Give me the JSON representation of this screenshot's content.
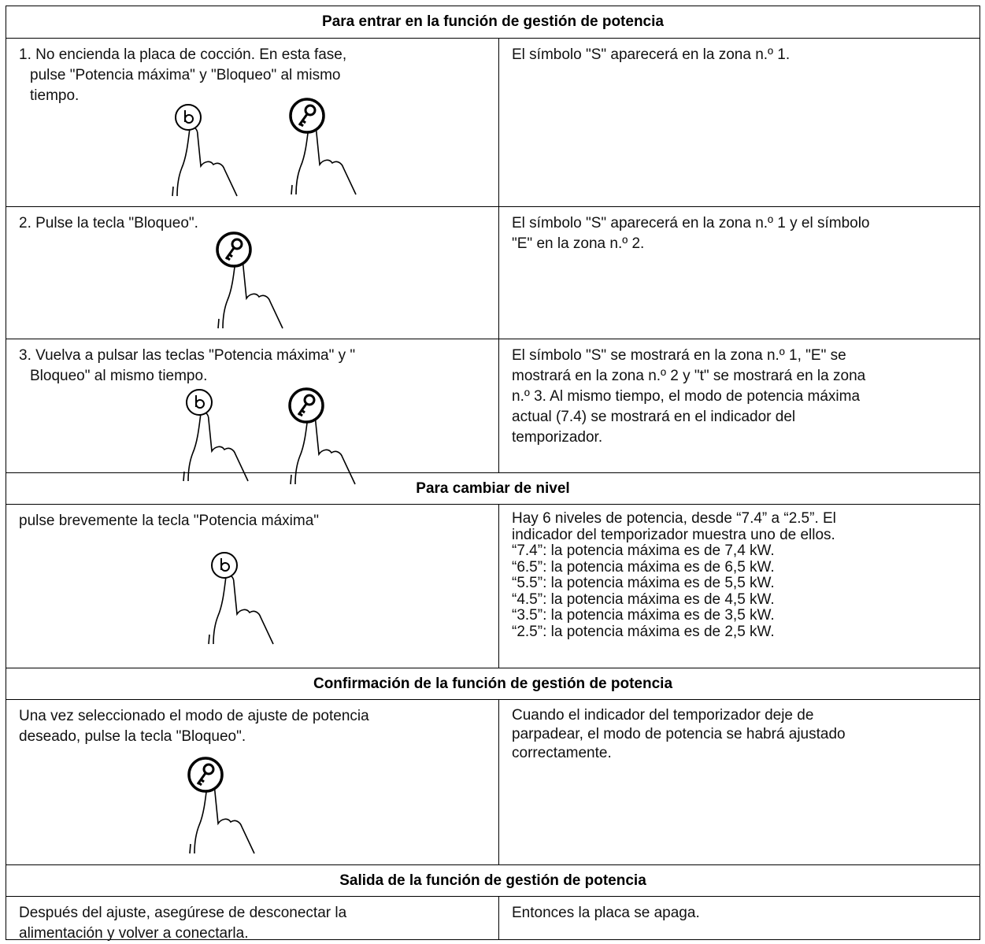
{
  "sections": [
    {
      "heading": "Para entrar en la función de gestión de potencia",
      "rows": [
        {
          "action": [
            "1. No encienda la placa de cocción. En esta fase,",
            "pulse \"Potencia máxima\" y \"Bloqueo\" al mismo",
            "tiempo."
          ],
          "result": [
            "El símbolo \"S\" aparecerá en la zona n.º 1."
          ]
        },
        {
          "action": [
            "2. Pulse la tecla \"Bloqueo\"."
          ],
          "result": [
            "El símbolo \"S\" aparecerá en la zona n.º 1 y el símbolo",
            "\"E\" en la zona n.º 2."
          ]
        },
        {
          "action": [
            "3. Vuelva a pulsar las teclas \"Potencia máxima\" y \"",
            "Bloqueo\" al mismo tiempo."
          ],
          "result": [
            "El símbolo \"S\" se mostrará en la zona n.º 1, \"E\" se",
            "mostrará en la zona n.º 2 y \"t\" se mostrará en la zona",
            "n.º 3. Al mismo tiempo, el modo de potencia máxima",
            "actual (7.4) se mostrará en el indicador del",
            "temporizador."
          ]
        }
      ]
    },
    {
      "heading": "Para cambiar de nivel",
      "rows": [
        {
          "action": [
            "pulse brevemente la tecla \"Potencia máxima\""
          ],
          "result": [
            "Hay 6 niveles de potencia, desde “7.4” a “2.5”. El",
            "indicador del temporizador muestra uno de ellos.",
            "“7.4”: la potencia máxima es de 7,4 kW.",
            "“6.5”: la potencia máxima es de 6,5 kW.",
            "“5.5”: la potencia máxima es de 5,5 kW.",
            "“4.5”: la potencia máxima es de 4,5 kW.",
            "“3.5”: la potencia máxima es de 3,5 kW.",
            "“2.5”: la potencia máxima es de 2,5 kW."
          ]
        }
      ]
    },
    {
      "heading": "Confirmación de la función de gestión de potencia",
      "rows": [
        {
          "action": [
            "Una vez seleccionado el modo de ajuste de potencia",
            "deseado, pulse la tecla \"Bloqueo\"."
          ],
          "result": [
            "Cuando el indicador del temporizador deje de",
            "parpadear, el modo de potencia se habrá ajustado",
            "correctamente."
          ]
        }
      ]
    },
    {
      "heading": "Salida de la función de gestión de potencia",
      "rows": [
        {
          "action": [
            "Después del ajuste, asegúrese de desconectar la",
            "alimentación y volver a conectarla."
          ],
          "result": [
            "Entonces la placa se apaga."
          ]
        }
      ]
    }
  ]
}
